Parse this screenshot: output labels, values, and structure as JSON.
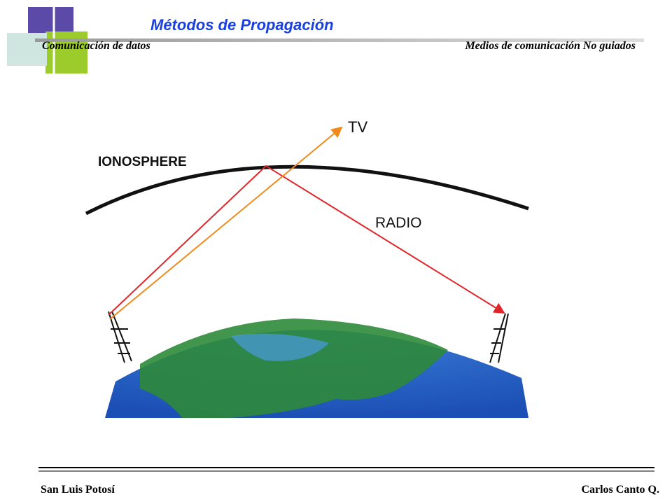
{
  "header": {
    "title": "Métodos de Propagación",
    "left": "Comunicación de datos",
    "right": "Medios de comunicación  No guiados"
  },
  "figure": {
    "labels": [
      "TV",
      "IONOSPHERE",
      "RADIO"
    ]
  },
  "footer": {
    "left": "San Luis Potosí",
    "right": "Carlos Canto Q."
  }
}
